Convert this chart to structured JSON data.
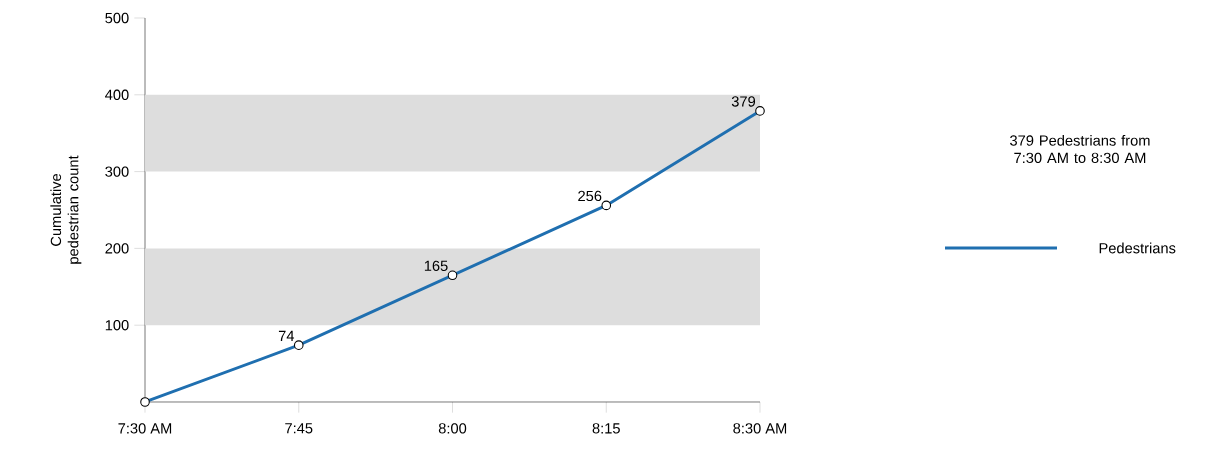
{
  "chart_data": {
    "type": "line",
    "categories": [
      "7:30 AM",
      "7:45",
      "8:00",
      "8:15",
      "8:30 AM"
    ],
    "series": [
      {
        "name": "Pedestrians",
        "color": "#1f6fb0",
        "values": [
          0,
          74,
          165,
          256,
          379
        ],
        "value_labels": [
          null,
          "74",
          "165",
          "256",
          "379"
        ]
      }
    ],
    "ylabel": "Cumulative pedestrian count",
    "ylim": [
      0,
      500
    ],
    "yticks": [
      100,
      200,
      300,
      400,
      500
    ],
    "bands": [
      {
        "axis": "y",
        "from": 100,
        "to": 200,
        "color": "#dddddd"
      },
      {
        "axis": "y",
        "from": 300,
        "to": 400,
        "color": "#dddddd"
      }
    ],
    "annotations": [
      "379 Pedestrians from 7:30 AM to 8:30 AM"
    ],
    "legend": "right",
    "marker": "circle",
    "line_style": "solid"
  }
}
